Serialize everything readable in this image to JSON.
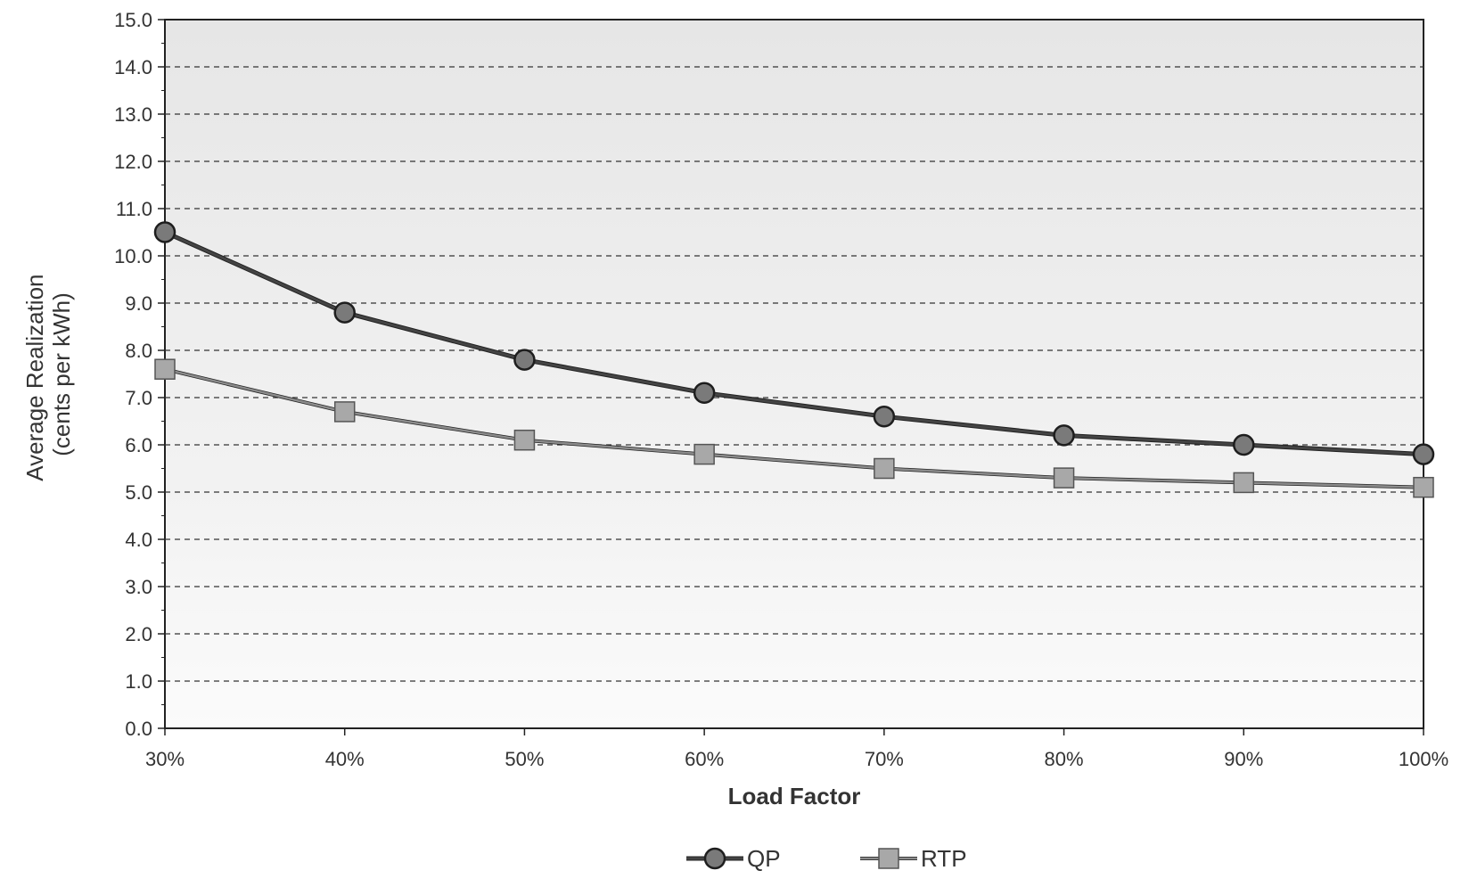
{
  "chart_data": {
    "type": "line",
    "title": "",
    "xlabel": "Load Factor",
    "ylabel": "Average Realization\n(cents per kWh)",
    "ylabel_lines": [
      "Average Realization",
      "(cents per kWh)"
    ],
    "categories": [
      "30%",
      "40%",
      "50%",
      "60%",
      "70%",
      "80%",
      "90%",
      "100%"
    ],
    "yticks": [
      "0.0",
      "1.0",
      "2.0",
      "3.0",
      "4.0",
      "5.0",
      "6.0",
      "7.0",
      "8.0",
      "9.0",
      "10.0",
      "11.0",
      "12.0",
      "13.0",
      "14.0",
      "15.0"
    ],
    "ylim": [
      0,
      15
    ],
    "grid": true,
    "legend_position": "bottom",
    "series": [
      {
        "name": "QP",
        "marker": "circle",
        "color": "#7a7a7a",
        "line_color": "#444444",
        "values": [
          10.5,
          8.8,
          7.8,
          7.1,
          6.6,
          6.2,
          6.0,
          5.8
        ]
      },
      {
        "name": "RTP",
        "marker": "square",
        "color": "#a8a8a8",
        "line_color": "#8c8c8c",
        "values": [
          7.6,
          6.7,
          6.1,
          5.8,
          5.5,
          5.3,
          5.2,
          5.1
        ]
      }
    ],
    "colors": {
      "plot_background": "#ececec",
      "gridline": "#333333",
      "axis": "#222222"
    }
  }
}
